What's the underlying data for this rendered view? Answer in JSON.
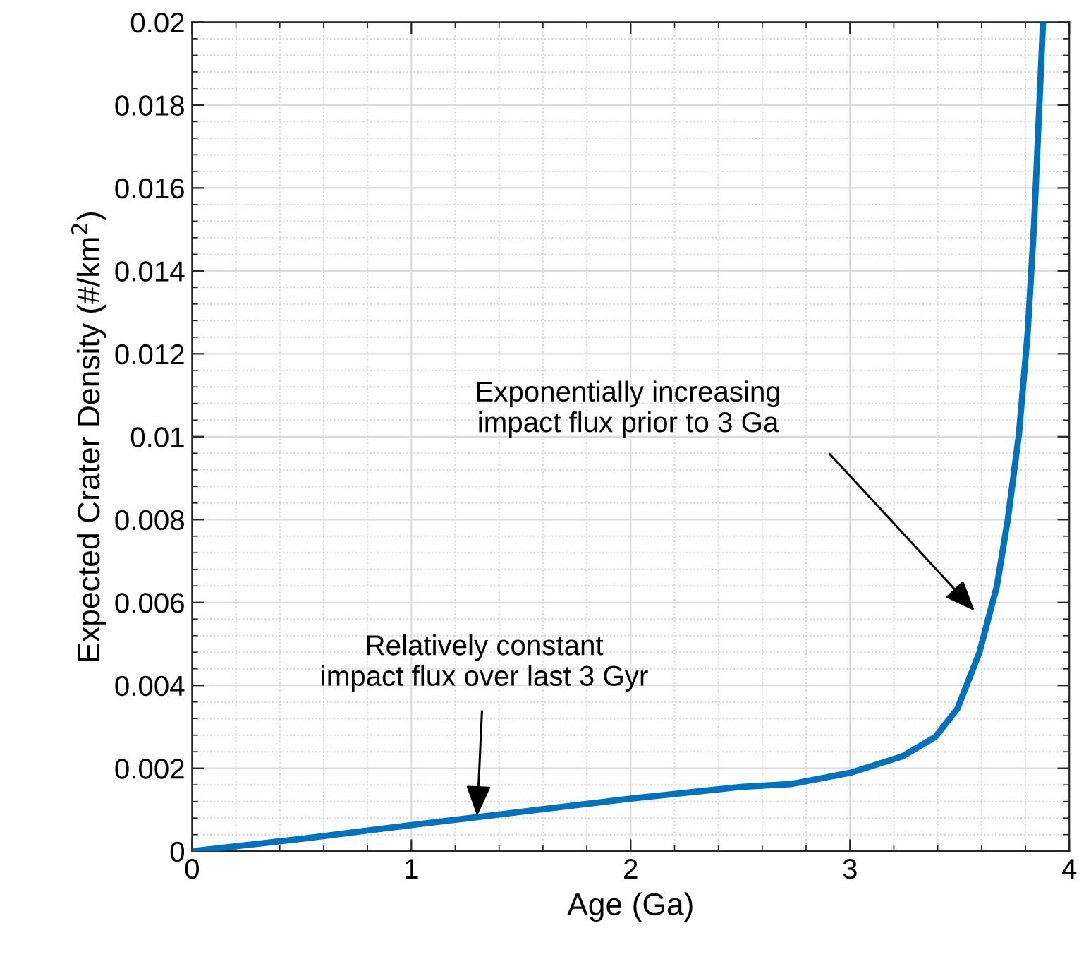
{
  "chart_data": {
    "type": "line",
    "xlabel": "Age (Ga)",
    "ylabel": "Expected Crater Density (#/km$^{2}$)",
    "x": [
      0,
      0.5,
      1,
      1.5,
      2,
      2.5,
      2.73,
      3.0,
      3.24,
      3.39,
      3.49,
      3.59,
      3.67,
      3.72,
      3.77,
      3.81,
      3.84,
      3.88
    ],
    "series": [
      {
        "color": "#0072bd",
        "values": [
          0,
          0.0003,
          0.00063,
          0.00095,
          0.00127,
          0.00155,
          0.00162,
          0.00189,
          0.00229,
          0.00276,
          0.00344,
          0.00479,
          0.0064,
          0.00802,
          0.01004,
          0.0125,
          0.0152,
          0.02
        ]
      }
    ],
    "xlim": [
      0,
      4
    ],
    "xticks": [
      0,
      1,
      2,
      3,
      4
    ],
    "ylim": [
      0,
      0.02
    ],
    "yticks": [
      0,
      0.002,
      0.004,
      0.006,
      0.008,
      0.01,
      0.012,
      0.014,
      0.016,
      0.018,
      0.02
    ],
    "grid": true,
    "marker": "none",
    "line_style": "solid",
    "annotations": [
      {
        "text": "Relatively constant\nimpact flux over last 3 Gyr",
        "x": 1.3,
        "y": 0.00085
      },
      "Exponentially increasing\nimpact flux prior to 3 Ga"
    ]
  }
}
